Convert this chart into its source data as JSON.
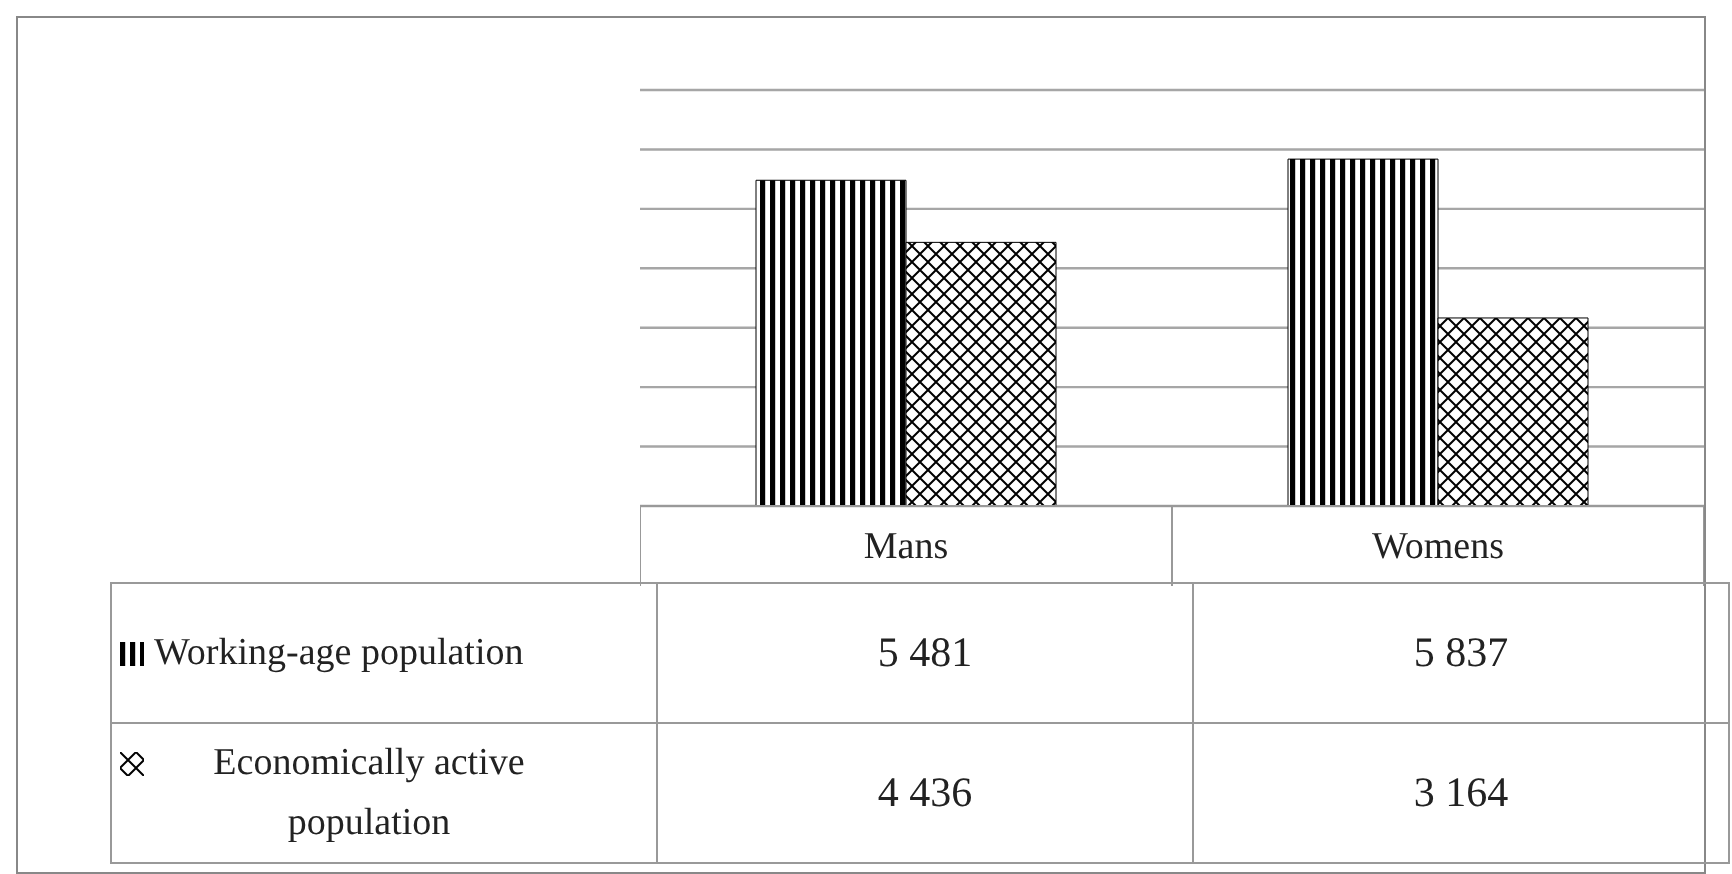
{
  "chart_data": {
    "type": "bar",
    "categories": [
      "Mans",
      "Womens"
    ],
    "series": [
      {
        "name": "Working-age population",
        "color": "#000000",
        "values": [
          5481,
          5837
        ],
        "value_labels": [
          "5 481",
          "5 837"
        ]
      },
      {
        "name": "Economically active population",
        "color": "#000000",
        "values": [
          4436,
          3164
        ],
        "value_labels": [
          "4 436",
          "3 164"
        ]
      }
    ],
    "ylim": [
      0,
      7000
    ],
    "yticks": [
      {
        "value": 0,
        "label": null
      },
      {
        "value": 1000,
        "label": null
      },
      {
        "value": 2000,
        "label": null
      },
      {
        "value": 3000,
        "label": null
      },
      {
        "value": 4000,
        "label": null
      },
      {
        "value": 5000,
        "label": null
      },
      {
        "value": 6000,
        "label": null
      },
      {
        "value": 7000,
        "label": null
      }
    ],
    "grid": "y",
    "legend": "bottom",
    "tick_labels": "x"
  }
}
